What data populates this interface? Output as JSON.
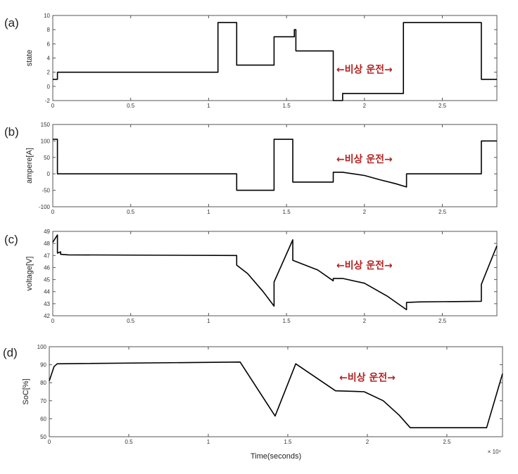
{
  "chart_data": [
    {
      "type": "line",
      "panel_label": "(a)",
      "ylabel": "state",
      "xlim": [
        0,
        2.85
      ],
      "ylim": [
        -2,
        10
      ],
      "xticks": [
        0,
        0.5,
        1,
        1.5,
        2,
        2.5
      ],
      "xtick_labels": [
        "0",
        "0.5",
        "1",
        "1.5",
        "2",
        "2.5"
      ],
      "yticks": [
        -2,
        0,
        2,
        4,
        6,
        8,
        10
      ],
      "ytick_labels": [
        "-2",
        "0",
        "2",
        "4",
        "6",
        "8",
        "10"
      ],
      "annotation": {
        "text": "←비상 운전→",
        "x": 2.0,
        "y": 2.4
      },
      "series": [
        {
          "x": [
            0,
            0.03,
            0.03,
            1.06,
            1.06,
            1.18,
            1.18,
            1.42,
            1.42,
            1.55,
            1.55,
            1.56,
            1.56,
            1.8,
            1.8,
            1.86,
            1.86,
            2.25,
            2.25,
            2.75,
            2.75,
            2.85
          ],
          "y": [
            1,
            1,
            2,
            2,
            9,
            9,
            3,
            3,
            7,
            7,
            8,
            8,
            5,
            5,
            -2,
            -2,
            -1,
            -1,
            9,
            9,
            1,
            1
          ]
        }
      ]
    },
    {
      "type": "line",
      "panel_label": "(b)",
      "ylabel": "ampere[A]",
      "xlim": [
        0,
        2.85
      ],
      "ylim": [
        -100,
        150
      ],
      "xticks": [
        0,
        0.5,
        1,
        1.5,
        2,
        2.5
      ],
      "xtick_labels": [
        "0",
        "0.5",
        "1",
        "1.5",
        "2",
        "2.5"
      ],
      "yticks": [
        -100,
        -50,
        0,
        50,
        100,
        150
      ],
      "ytick_labels": [
        "-100",
        "-50",
        "0",
        "50",
        "100",
        "150"
      ],
      "annotation": {
        "text": "←비상 운전→",
        "x": 2.0,
        "y": 45
      },
      "series": [
        {
          "x": [
            0,
            0.03,
            0.03,
            1.18,
            1.18,
            1.42,
            1.42,
            1.54,
            1.54,
            1.8,
            1.8,
            1.86,
            2.0,
            2.1,
            2.2,
            2.27,
            2.27,
            2.75,
            2.75,
            2.85
          ],
          "y": [
            105,
            105,
            0,
            0,
            -50,
            -50,
            105,
            105,
            -25,
            -25,
            5,
            5,
            -5,
            -18,
            -30,
            -40,
            0,
            0,
            100,
            100
          ]
        }
      ]
    },
    {
      "type": "line",
      "panel_label": "(c)",
      "ylabel": "voltage[V]",
      "xlim": [
        0,
        2.85
      ],
      "ylim": [
        42,
        49
      ],
      "xticks": [
        0,
        0.5,
        1,
        1.5,
        2,
        2.5
      ],
      "xtick_labels": [
        "0",
        "0.5",
        "1",
        "1.5",
        "2",
        "2.5"
      ],
      "yticks": [
        42,
        43,
        44,
        45,
        46,
        47,
        48,
        49
      ],
      "ytick_labels": [
        "42",
        "43",
        "44",
        "45",
        "46",
        "47",
        "48",
        "49"
      ],
      "annotation": {
        "text": "←비상 운전→",
        "x": 2.0,
        "y": 46.2
      },
      "series": [
        {
          "x": [
            0,
            0.03,
            0.03,
            0.05,
            0.05,
            0.1,
            1.18,
            1.18,
            1.25,
            1.35,
            1.42,
            1.42,
            1.54,
            1.54,
            1.7,
            1.8,
            1.8,
            1.86,
            2.0,
            2.15,
            2.27,
            2.27,
            2.35,
            2.75,
            2.75,
            2.8,
            2.85
          ],
          "y": [
            48.1,
            48.7,
            47.2,
            47.3,
            47.1,
            47.05,
            47.0,
            46.2,
            45.5,
            44.0,
            42.8,
            44.8,
            48.3,
            46.6,
            45.8,
            44.9,
            45.1,
            45.1,
            44.7,
            43.6,
            42.5,
            43.1,
            43.15,
            43.2,
            44.6,
            46.2,
            47.8
          ]
        }
      ]
    },
    {
      "type": "line",
      "panel_label": "(d)",
      "ylabel": "SoC[%]",
      "xlabel": "Time(seconds)",
      "x_multiplier": "× 10⁴",
      "xlim": [
        0,
        2.85
      ],
      "ylim": [
        50,
        100
      ],
      "xticks": [
        0,
        0.5,
        1,
        1.5,
        2,
        2.5
      ],
      "xtick_labels": [
        "0",
        "0.5",
        "1",
        "1.5",
        "2",
        "2.5"
      ],
      "yticks": [
        50,
        60,
        70,
        80,
        90,
        100
      ],
      "ytick_labels": [
        "50",
        "60",
        "70",
        "80",
        "90",
        "100"
      ],
      "annotation": {
        "text": "←비상 운전→",
        "x": 2.0,
        "y": 83
      },
      "series": [
        {
          "x": [
            0,
            0.03,
            0.05,
            1.2,
            1.42,
            1.55,
            1.8,
            1.98,
            2.1,
            2.2,
            2.27,
            2.75,
            2.85
          ],
          "y": [
            81,
            89,
            90.5,
            91.5,
            61.5,
            90.5,
            75.5,
            75,
            70,
            62,
            55,
            55,
            85
          ]
        }
      ]
    }
  ]
}
